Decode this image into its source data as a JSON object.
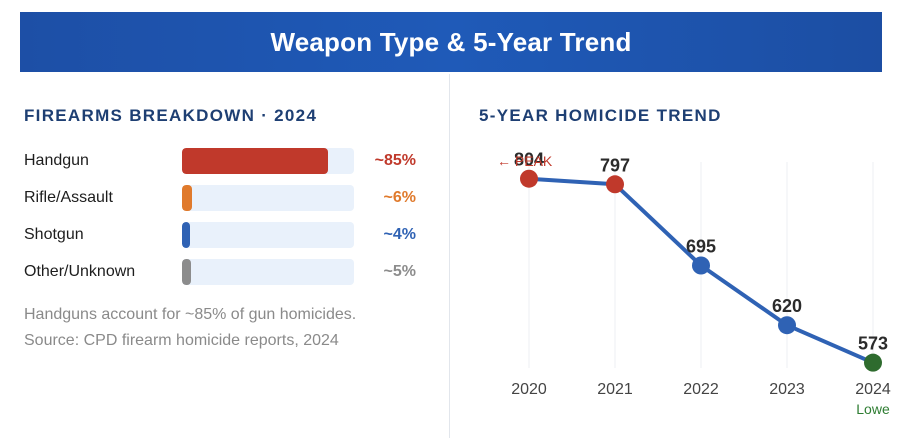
{
  "header": {
    "title": "Weapon Type & 5-Year Trend"
  },
  "breakdown": {
    "title": "FIREARMS BREAKDOWN · 2024",
    "rows": [
      {
        "label": "Handgun",
        "value_text": "~85%",
        "share": 0.85,
        "color": "#c0392b"
      },
      {
        "label": "Rifle/Assault",
        "value_text": "~6%",
        "share": 0.06,
        "color": "#e07a2c"
      },
      {
        "label": "Shotgun",
        "value_text": "~4%",
        "share": 0.04,
        "color": "#2f62b4"
      },
      {
        "label": "Other/Unknown",
        "value_text": "~5%",
        "share": 0.05,
        "color": "#8c8c8c"
      }
    ],
    "note": "Handguns account for ~85% of gun homicides. Source: CPD firearm homicide reports, 2024"
  },
  "trend": {
    "title": "5-YEAR HOMICIDE TREND",
    "peak_label": "← PEAK",
    "low_label": "Lowe"
  },
  "chart_data": {
    "type": "line",
    "title": "5-YEAR HOMICIDE TREND",
    "x": [
      "2020",
      "2021",
      "2022",
      "2023",
      "2024"
    ],
    "tick_labels": [
      "2020",
      "2021",
      "2022",
      "2023",
      "2024"
    ],
    "values": [
      804,
      797,
      695,
      620,
      573
    ],
    "point_colors": [
      "#c0392b",
      "#c0392b",
      "#2f62b4",
      "#2f62b4",
      "#2e6b2e"
    ],
    "line_color": "#2f62b4",
    "ylim": [
      560,
      830
    ],
    "grid": "vertical"
  }
}
